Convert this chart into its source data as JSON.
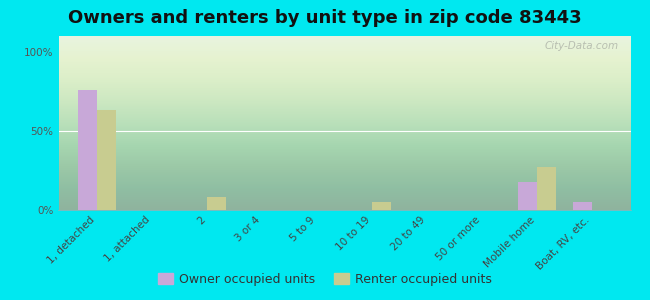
{
  "title": "Owners and renters by unit type in zip code 83443",
  "categories": [
    "1, detached",
    "1, attached",
    "2",
    "3 or 4",
    "5 to 9",
    "10 to 19",
    "20 to 49",
    "50 or more",
    "Mobile home",
    "Boat, RV, etc."
  ],
  "owner_values": [
    76,
    0,
    0,
    0,
    0,
    0,
    0,
    0,
    18,
    5
  ],
  "renter_values": [
    63,
    0,
    8,
    0,
    0,
    5,
    0,
    0,
    27,
    0
  ],
  "owner_color": "#c8a8d8",
  "renter_color": "#c8cc90",
  "bg_color": "#00e8f0",
  "plot_bg_color": "#e8f0e0",
  "ylabel_values": [
    "0%",
    "50%",
    "100%"
  ],
  "yticks": [
    0,
    50,
    100
  ],
  "ylim": [
    0,
    110
  ],
  "bar_width": 0.35,
  "legend_owner": "Owner occupied units",
  "legend_renter": "Renter occupied units",
  "watermark": "City-Data.com",
  "title_fontsize": 13,
  "tick_fontsize": 7.5,
  "legend_fontsize": 9
}
